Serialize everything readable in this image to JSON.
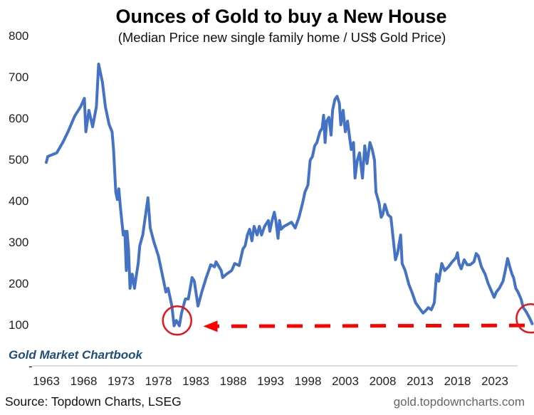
{
  "chart_data": {
    "type": "line",
    "title": "Ounces of Gold to buy a New House",
    "subtitle": "(Median Price new single family home / US$ Gold Price)",
    "xlabel": "",
    "ylabel": "",
    "xlim": [
      1963,
      2026
    ],
    "ylim": [
      0,
      800
    ],
    "yticks": [
      0,
      100,
      200,
      300,
      400,
      500,
      600,
      700,
      800
    ],
    "ytick_labels": [
      "-",
      "100",
      "200",
      "300",
      "400",
      "500",
      "600",
      "700",
      "800"
    ],
    "xticks": [
      1963,
      1968,
      1973,
      1978,
      1983,
      1988,
      1993,
      1998,
      2003,
      2008,
      2013,
      2018,
      2023
    ],
    "xtick_labels": [
      "1963",
      "1968",
      "1973",
      "1978",
      "1983",
      "1988",
      "1993",
      "1998",
      "2003",
      "2008",
      "2013",
      "2018",
      "2023"
    ],
    "grid": false,
    "legend": "none",
    "series": [
      {
        "name": "Ounces of gold per median new home",
        "color": "#4472c4",
        "points": [
          [
            1963.0,
            493
          ],
          [
            1963.2,
            507
          ],
          [
            1964.4,
            516
          ],
          [
            1965.2,
            541
          ],
          [
            1965.9,
            567
          ],
          [
            1966.8,
            605
          ],
          [
            1967.6,
            628
          ],
          [
            1968.1,
            648
          ],
          [
            1968.3,
            567
          ],
          [
            1968.7,
            619
          ],
          [
            1969.2,
            579
          ],
          [
            1969.7,
            628
          ],
          [
            1970.0,
            731
          ],
          [
            1970.5,
            688
          ],
          [
            1970.9,
            628
          ],
          [
            1971.4,
            585
          ],
          [
            1971.8,
            567
          ],
          [
            1972.0,
            524
          ],
          [
            1972.3,
            421
          ],
          [
            1972.5,
            403
          ],
          [
            1972.7,
            429
          ],
          [
            1972.9,
            386
          ],
          [
            1973.3,
            317
          ],
          [
            1973.5,
            326
          ],
          [
            1973.7,
            231
          ],
          [
            1973.8,
            326
          ],
          [
            1974.0,
            283
          ],
          [
            1974.2,
            188
          ],
          [
            1974.5,
            222
          ],
          [
            1974.8,
            188
          ],
          [
            1975.0,
            214
          ],
          [
            1975.3,
            248
          ],
          [
            1975.5,
            291
          ],
          [
            1975.9,
            317
          ],
          [
            1976.6,
            407
          ],
          [
            1976.9,
            334
          ],
          [
            1977.4,
            300
          ],
          [
            1978.0,
            266
          ],
          [
            1978.6,
            214
          ],
          [
            1979.0,
            179
          ],
          [
            1979.3,
            188
          ],
          [
            1979.8,
            145
          ],
          [
            1980.1,
            97
          ],
          [
            1980.4,
            110
          ],
          [
            1980.8,
            97
          ],
          [
            1981.1,
            128
          ],
          [
            1981.6,
            162
          ],
          [
            1982.0,
            162
          ],
          [
            1982.5,
            214
          ],
          [
            1982.8,
            205
          ],
          [
            1983.3,
            145
          ],
          [
            1983.8,
            179
          ],
          [
            1984.4,
            214
          ],
          [
            1985.0,
            245
          ],
          [
            1985.5,
            240
          ],
          [
            1985.7,
            252
          ],
          [
            1986.4,
            231
          ],
          [
            1986.6,
            214
          ],
          [
            1987.1,
            222
          ],
          [
            1987.8,
            231
          ],
          [
            1988.2,
            248
          ],
          [
            1988.8,
            243
          ],
          [
            1989.3,
            283
          ],
          [
            1989.6,
            291
          ],
          [
            1989.9,
            317
          ],
          [
            1990.2,
            331
          ],
          [
            1990.5,
            303
          ],
          [
            1990.8,
            338
          ],
          [
            1991.2,
            317
          ],
          [
            1991.5,
            338
          ],
          [
            1991.8,
            317
          ],
          [
            1992.2,
            338
          ],
          [
            1992.7,
            352
          ],
          [
            1992.9,
            326
          ],
          [
            1993.2,
            352
          ],
          [
            1993.5,
            372
          ],
          [
            1993.7,
            352
          ],
          [
            1994.0,
            309
          ],
          [
            1994.2,
            352
          ],
          [
            1994.4,
            331
          ],
          [
            1994.8,
            338
          ],
          [
            1995.3,
            343
          ],
          [
            1995.8,
            348
          ],
          [
            1996.3,
            334
          ],
          [
            1996.8,
            360
          ],
          [
            1997.3,
            395
          ],
          [
            1997.6,
            421
          ],
          [
            1998.0,
            438
          ],
          [
            1998.3,
            498
          ],
          [
            1998.6,
            507
          ],
          [
            1998.9,
            533
          ],
          [
            1999.2,
            541
          ],
          [
            1999.6,
            567
          ],
          [
            1999.9,
            576
          ],
          [
            2000.1,
            607
          ],
          [
            2000.3,
            541
          ],
          [
            2000.5,
            593
          ],
          [
            2000.8,
            602
          ],
          [
            2001.1,
            559
          ],
          [
            2001.3,
            619
          ],
          [
            2001.6,
            645
          ],
          [
            2001.9,
            653
          ],
          [
            2002.2,
            636
          ],
          [
            2002.4,
            584
          ],
          [
            2002.7,
            619
          ],
          [
            2003.0,
            567
          ],
          [
            2003.3,
            593
          ],
          [
            2003.6,
            550
          ],
          [
            2003.8,
            524
          ],
          [
            2004.1,
            541
          ],
          [
            2004.3,
            455
          ],
          [
            2004.6,
            498
          ],
          [
            2004.9,
            516
          ],
          [
            2005.3,
            455
          ],
          [
            2005.6,
            533
          ],
          [
            2005.9,
            490
          ],
          [
            2006.3,
            541
          ],
          [
            2006.6,
            524
          ],
          [
            2006.9,
            498
          ],
          [
            2007.1,
            421
          ],
          [
            2007.5,
            395
          ],
          [
            2007.8,
            360
          ],
          [
            2008.0,
            366
          ],
          [
            2008.3,
            391
          ],
          [
            2008.7,
            366
          ],
          [
            2009.1,
            360
          ],
          [
            2009.4,
            309
          ],
          [
            2009.7,
            257
          ],
          [
            2010.0,
            274
          ],
          [
            2010.4,
            317
          ],
          [
            2010.6,
            248
          ],
          [
            2011.0,
            231
          ],
          [
            2011.5,
            197
          ],
          [
            2011.9,
            179
          ],
          [
            2012.4,
            153
          ],
          [
            2012.9,
            140
          ],
          [
            2013.4,
            128
          ],
          [
            2013.7,
            133
          ],
          [
            2014.1,
            141
          ],
          [
            2014.5,
            136
          ],
          [
            2014.9,
            153
          ],
          [
            2015.2,
            222
          ],
          [
            2015.5,
            205
          ],
          [
            2015.9,
            248
          ],
          [
            2016.3,
            231
          ],
          [
            2016.8,
            240
          ],
          [
            2017.3,
            252
          ],
          [
            2017.8,
            262
          ],
          [
            2018.0,
            274
          ],
          [
            2018.2,
            248
          ],
          [
            2018.5,
            235
          ],
          [
            2018.9,
            257
          ],
          [
            2019.3,
            245
          ],
          [
            2019.7,
            245
          ],
          [
            2020.2,
            252
          ],
          [
            2020.5,
            272
          ],
          [
            2020.8,
            266
          ],
          [
            2021.2,
            240
          ],
          [
            2021.7,
            222
          ],
          [
            2022.1,
            200
          ],
          [
            2022.6,
            179
          ],
          [
            2022.9,
            166
          ],
          [
            2023.2,
            179
          ],
          [
            2023.6,
            188
          ],
          [
            2024.1,
            205
          ],
          [
            2024.4,
            231
          ],
          [
            2024.7,
            260
          ],
          [
            2025.0,
            240
          ],
          [
            2025.3,
            222
          ],
          [
            2025.5,
            214
          ],
          [
            2025.8,
            188
          ],
          [
            2026.1,
            179
          ],
          [
            2026.5,
            162
          ],
          [
            2026.8,
            141
          ],
          [
            2027.2,
            131
          ],
          [
            2027.7,
            114
          ],
          [
            2028.0,
            102
          ]
        ]
      }
    ],
    "annotations": [
      {
        "type": "circle",
        "label": "1980 low",
        "center": [
          1980.5,
          110
        ],
        "color": "#e8141c"
      },
      {
        "type": "circle",
        "label": "latest value",
        "center": [
          2027.8,
          115
        ],
        "color": "#e8141c"
      },
      {
        "type": "dashed-arrow",
        "label": "latest level compared to 1980 low",
        "from": [
          2027.0,
          98
        ],
        "to": [
          1984.0,
          96
        ],
        "color": "#ff0000"
      }
    ]
  },
  "branding": {
    "chartbook": "Gold Market Chartbook",
    "source": "Source: Topdown Charts, LSEG",
    "url": "gold.topdowncharts.com"
  }
}
